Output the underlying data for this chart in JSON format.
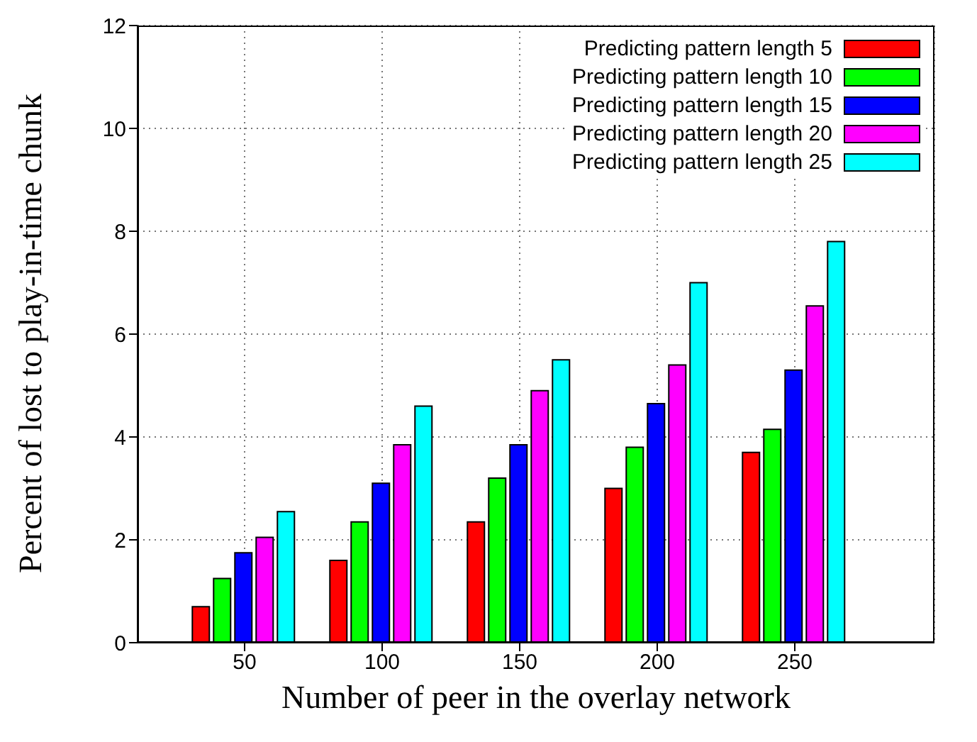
{
  "chart_data": {
    "type": "bar",
    "xlabel": "Number of peer in the overlay network",
    "ylabel": "Percent of lost to play-in-time chunk",
    "categories": [
      "50",
      "100",
      "150",
      "200",
      "250"
    ],
    "series": [
      {
        "name": "Predicting pattern length 5",
        "color": "#ff0000",
        "values": [
          0.7,
          1.6,
          2.35,
          3.0,
          3.7
        ]
      },
      {
        "name": "Predicting pattern length 10",
        "color": "#00ff00",
        "values": [
          1.25,
          2.35,
          3.2,
          3.8,
          4.15
        ]
      },
      {
        "name": "Predicting pattern length 15",
        "color": "#0000ff",
        "values": [
          1.75,
          3.1,
          3.85,
          4.65,
          5.3
        ]
      },
      {
        "name": "Predicting pattern length 20",
        "color": "#ff00ff",
        "values": [
          2.05,
          3.85,
          4.9,
          5.4,
          6.55
        ]
      },
      {
        "name": "Predicting pattern length 25",
        "color": "#00ffff",
        "values": [
          2.55,
          4.6,
          5.5,
          7.0,
          7.8
        ]
      }
    ],
    "ylim": [
      0,
      12
    ],
    "yticks": [
      0,
      2,
      4,
      6,
      8,
      10,
      12
    ],
    "grid": true,
    "legend": "top right"
  }
}
